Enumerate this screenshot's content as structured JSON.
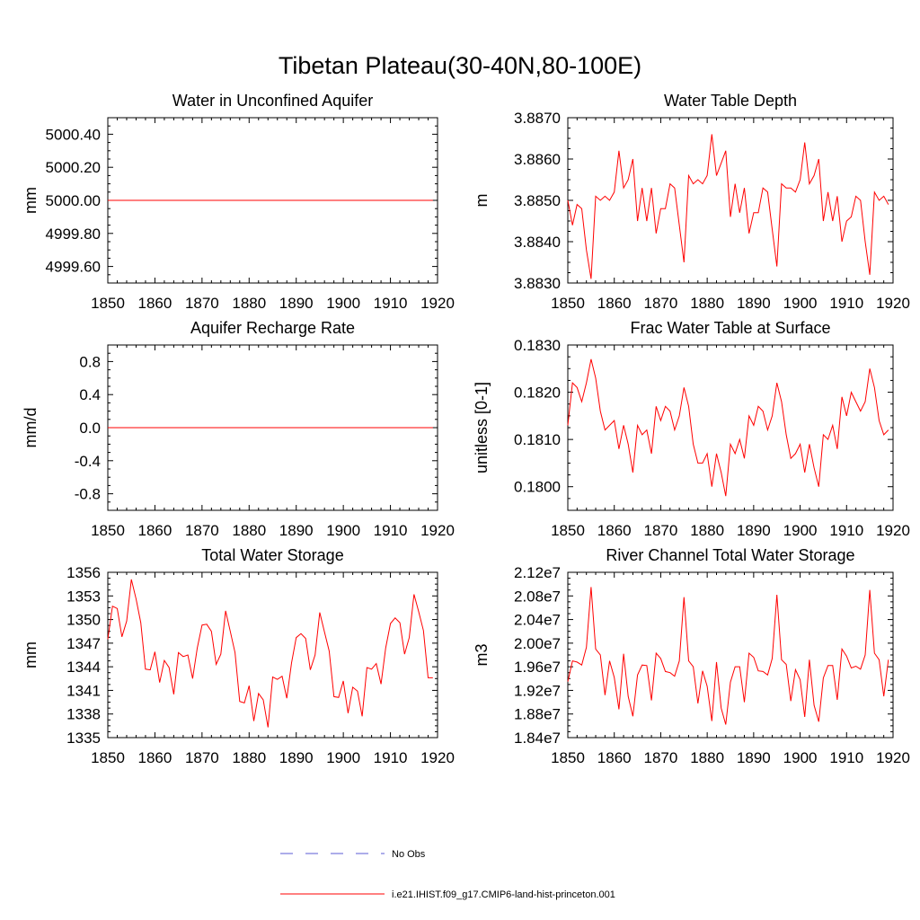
{
  "figure": {
    "title": "Tibetan Plateau(30-40N,80-100E)"
  },
  "legend": [
    {
      "label": "No Obs",
      "color": "#5b5bd6",
      "dash": "dashed"
    },
    {
      "label": "i.e21.IHIST.f09_g17.CMIP6-land-hist-princeton.001",
      "color": "#ff0000",
      "dash": "solid"
    }
  ],
  "chart_data": [
    {
      "type": "line",
      "title": "Water in Unconfined Aquifer",
      "ylabel": "mm",
      "xlim": [
        1850,
        1920
      ],
      "ylim": [
        4999.5,
        5000.5
      ],
      "xticks": [
        "1850",
        "1860",
        "1870",
        "1880",
        "1890",
        "1900",
        "1910",
        "1920"
      ],
      "yticks": [
        {
          "v": 5000.4,
          "label": "5000.40"
        },
        {
          "v": 5000.2,
          "label": "5000.20"
        },
        {
          "v": 5000.0,
          "label": "5000.00"
        },
        {
          "v": 4999.8,
          "label": "4999.80"
        },
        {
          "v": 4999.6,
          "label": "4999.60"
        }
      ],
      "x_start": 1850,
      "x_step": 1,
      "series": [
        {
          "color": "#ff0000",
          "values": [
            5000,
            5000,
            5000,
            5000,
            5000,
            5000,
            5000,
            5000,
            5000,
            5000,
            5000,
            5000,
            5000,
            5000,
            5000,
            5000,
            5000,
            5000,
            5000,
            5000,
            5000,
            5000,
            5000,
            5000,
            5000,
            5000,
            5000,
            5000,
            5000,
            5000,
            5000,
            5000,
            5000,
            5000,
            5000,
            5000,
            5000,
            5000,
            5000,
            5000,
            5000,
            5000,
            5000,
            5000,
            5000,
            5000,
            5000,
            5000,
            5000,
            5000,
            5000,
            5000,
            5000,
            5000,
            5000,
            5000,
            5000,
            5000,
            5000,
            5000,
            5000,
            5000,
            5000,
            5000,
            5000,
            5000,
            5000,
            5000,
            5000,
            5000
          ]
        }
      ]
    },
    {
      "type": "line",
      "title": "Water Table Depth",
      "ylabel": "m",
      "xlim": [
        1850,
        1920
      ],
      "ylim": [
        3.883,
        3.887
      ],
      "xticks": [
        "1850",
        "1860",
        "1870",
        "1880",
        "1890",
        "1900",
        "1910",
        "1920"
      ],
      "yticks": [
        {
          "v": 3.887,
          "label": "3.8870"
        },
        {
          "v": 3.886,
          "label": "3.8860"
        },
        {
          "v": 3.885,
          "label": "3.8850"
        },
        {
          "v": 3.884,
          "label": "3.8840"
        },
        {
          "v": 3.883,
          "label": "3.8830"
        }
      ],
      "x_start": 1850,
      "x_step": 1,
      "series": [
        {
          "color": "#ff0000",
          "values": [
            3.885,
            3.8844,
            3.8849,
            3.8848,
            3.8838,
            3.8831,
            3.8851,
            3.885,
            3.8851,
            3.885,
            3.8852,
            3.8862,
            3.8853,
            3.8855,
            3.886,
            3.8845,
            3.8853,
            3.8845,
            3.8853,
            3.8842,
            3.8848,
            3.8848,
            3.8854,
            3.8853,
            3.8844,
            3.8835,
            3.8856,
            3.8854,
            3.8855,
            3.8854,
            3.8856,
            3.8866,
            3.8856,
            3.8859,
            3.8862,
            3.8846,
            3.8854,
            3.8847,
            3.8853,
            3.8842,
            3.8847,
            3.8847,
            3.8853,
            3.8852,
            3.8843,
            3.8834,
            3.8854,
            3.8853,
            3.8853,
            3.8852,
            3.8855,
            3.8864,
            3.8854,
            3.8856,
            3.886,
            3.8845,
            3.8852,
            3.8845,
            3.8851,
            3.884,
            3.8845,
            3.8846,
            3.8851,
            3.885,
            3.884,
            3.8832,
            3.8852,
            3.885,
            3.8851,
            3.8849
          ]
        }
      ]
    },
    {
      "type": "line",
      "title": "Aquifer Recharge Rate",
      "ylabel": "mm/d",
      "xlim": [
        1850,
        1920
      ],
      "ylim": [
        -1.0,
        1.0
      ],
      "xticks": [
        "1850",
        "1860",
        "1870",
        "1880",
        "1890",
        "1900",
        "1910",
        "1920"
      ],
      "yticks": [
        {
          "v": 0.8,
          "label": "0.8"
        },
        {
          "v": 0.4,
          "label": "0.4"
        },
        {
          "v": 0.0,
          "label": "0.0"
        },
        {
          "v": -0.4,
          "label": "-0.4"
        },
        {
          "v": -0.8,
          "label": "-0.8"
        }
      ],
      "x_start": 1850,
      "x_step": 1,
      "series": [
        {
          "color": "#ff0000",
          "values": [
            0,
            0,
            0,
            0,
            0,
            0,
            0,
            0,
            0,
            0,
            0,
            0,
            0,
            0,
            0,
            0,
            0,
            0,
            0,
            0,
            0,
            0,
            0,
            0,
            0,
            0,
            0,
            0,
            0,
            0,
            0,
            0,
            0,
            0,
            0,
            0,
            0,
            0,
            0,
            0,
            0,
            0,
            0,
            0,
            0,
            0,
            0,
            0,
            0,
            0,
            0,
            0,
            0,
            0,
            0,
            0,
            0,
            0,
            0,
            0,
            0,
            0,
            0,
            0,
            0,
            0,
            0,
            0,
            0,
            0
          ]
        }
      ]
    },
    {
      "type": "line",
      "title": "Frac Water Table at Surface",
      "ylabel": "unitless [0-1]",
      "xlim": [
        1850,
        1920
      ],
      "ylim": [
        0.1795,
        0.183
      ],
      "xticks": [
        "1850",
        "1860",
        "1870",
        "1880",
        "1890",
        "1900",
        "1910",
        "1920"
      ],
      "yticks": [
        {
          "v": 0.183,
          "label": "0.1830"
        },
        {
          "v": 0.182,
          "label": "0.1820"
        },
        {
          "v": 0.181,
          "label": "0.1810"
        },
        {
          "v": 0.18,
          "label": "0.1800"
        }
      ],
      "x_start": 1850,
      "x_step": 1,
      "series": [
        {
          "color": "#ff0000",
          "values": [
            0.1813,
            0.1822,
            0.1821,
            0.1818,
            0.1822,
            0.1827,
            0.1823,
            0.1816,
            0.1812,
            0.1813,
            0.1814,
            0.1808,
            0.1813,
            0.1809,
            0.1803,
            0.1813,
            0.1811,
            0.1812,
            0.1807,
            0.1817,
            0.1814,
            0.1817,
            0.1816,
            0.1812,
            0.1815,
            0.1821,
            0.1817,
            0.1809,
            0.1805,
            0.1805,
            0.1807,
            0.18,
            0.1807,
            0.1803,
            0.1798,
            0.1809,
            0.1807,
            0.181,
            0.1806,
            0.1815,
            0.1813,
            0.1817,
            0.1816,
            0.1812,
            0.1815,
            0.1822,
            0.1818,
            0.1811,
            0.1806,
            0.1807,
            0.1809,
            0.1803,
            0.1809,
            0.1804,
            0.18,
            0.1811,
            0.181,
            0.1813,
            0.1808,
            0.1819,
            0.1815,
            0.182,
            0.1818,
            0.1816,
            0.1818,
            0.1825,
            0.1821,
            0.1814,
            0.1811,
            0.1812
          ]
        }
      ]
    },
    {
      "type": "line",
      "title": "Total Water Storage",
      "ylabel": "mm",
      "xlim": [
        1850,
        1920
      ],
      "ylim": [
        1335,
        1356
      ],
      "xticks": [
        "1850",
        "1860",
        "1870",
        "1880",
        "1890",
        "1900",
        "1910",
        "1920"
      ],
      "yticks": [
        {
          "v": 1356,
          "label": "1356"
        },
        {
          "v": 1353,
          "label": "1353"
        },
        {
          "v": 1350,
          "label": "1350"
        },
        {
          "v": 1347,
          "label": "1347"
        },
        {
          "v": 1344,
          "label": "1344"
        },
        {
          "v": 1341,
          "label": "1341"
        },
        {
          "v": 1338,
          "label": "1338"
        },
        {
          "v": 1335,
          "label": "1335"
        }
      ],
      "x_start": 1850,
      "x_step": 1,
      "series": [
        {
          "color": "#ff0000",
          "values": [
            1347.5,
            1351.7,
            1351.4,
            1347.8,
            1349.8,
            1355.1,
            1352.6,
            1349.6,
            1343.7,
            1343.6,
            1345.9,
            1342.0,
            1344.8,
            1343.9,
            1340.5,
            1345.8,
            1345.3,
            1345.5,
            1342.5,
            1346.4,
            1349.3,
            1349.4,
            1348.5,
            1344.3,
            1345.6,
            1351.1,
            1348.5,
            1345.8,
            1339.6,
            1339.4,
            1341.6,
            1337.1,
            1340.6,
            1339.8,
            1336.3,
            1342.7,
            1342.4,
            1342.8,
            1340.0,
            1344.5,
            1347.7,
            1348.2,
            1347.6,
            1343.6,
            1345.5,
            1350.9,
            1348.4,
            1346.0,
            1340.2,
            1340.1,
            1342.2,
            1338.1,
            1341.4,
            1340.9,
            1337.7,
            1343.9,
            1343.7,
            1344.4,
            1341.8,
            1346.4,
            1349.5,
            1350.2,
            1349.6,
            1345.6,
            1347.7,
            1353.2,
            1351.0,
            1348.6,
            1342.6,
            1342.6
          ]
        }
      ]
    },
    {
      "type": "line",
      "title": "River Channel Total Water Storage",
      "ylabel": "m3",
      "xlim": [
        1850,
        1920
      ],
      "ylim": [
        18400000.0,
        21200000.0
      ],
      "xticks": [
        "1850",
        "1860",
        "1870",
        "1880",
        "1890",
        "1900",
        "1910",
        "1920"
      ],
      "yticks": [
        {
          "v": 21200000.0,
          "label": "2.12e7"
        },
        {
          "v": 20800000.0,
          "label": "2.08e7"
        },
        {
          "v": 20400000.0,
          "label": "2.04e7"
        },
        {
          "v": 20000000.0,
          "label": "2.00e7"
        },
        {
          "v": 19600000.0,
          "label": "1.96e7"
        },
        {
          "v": 19200000.0,
          "label": "1.92e7"
        },
        {
          "v": 18800000.0,
          "label": "1.88e7"
        },
        {
          "v": 18400000.0,
          "label": "1.84e7"
        }
      ],
      "x_start": 1850,
      "x_step": 1,
      "series": [
        {
          "color": "#ff0000",
          "values": [
            19350000.0,
            19700000.0,
            19680000.0,
            19630000.0,
            19930000.0,
            20950000.0,
            19900000.0,
            19800000.0,
            19120000.0,
            19700000.0,
            19420000.0,
            18880000.0,
            19820000.0,
            19100000.0,
            18760000.0,
            19460000.0,
            19630000.0,
            19620000.0,
            19030000.0,
            19830000.0,
            19740000.0,
            19520000.0,
            19500000.0,
            19440000.0,
            19700000.0,
            20780000.0,
            19700000.0,
            19600000.0,
            18980000.0,
            19530000.0,
            19270000.0,
            18680000.0,
            19680000.0,
            18900000.0,
            18620000.0,
            19340000.0,
            19600000.0,
            19600000.0,
            19000000.0,
            19830000.0,
            19760000.0,
            19530000.0,
            19520000.0,
            19460000.0,
            19740000.0,
            20820000.0,
            19720000.0,
            19640000.0,
            19020000.0,
            19550000.0,
            19380000.0,
            18750000.0,
            19720000.0,
            18950000.0,
            18670000.0,
            19410000.0,
            19620000.0,
            19620000.0,
            19040000.0,
            19900000.0,
            19780000.0,
            19580000.0,
            19610000.0,
            19560000.0,
            19800000.0,
            20900000.0,
            19830000.0,
            19720000.0,
            19100000.0,
            19720000.0
          ]
        }
      ]
    }
  ]
}
